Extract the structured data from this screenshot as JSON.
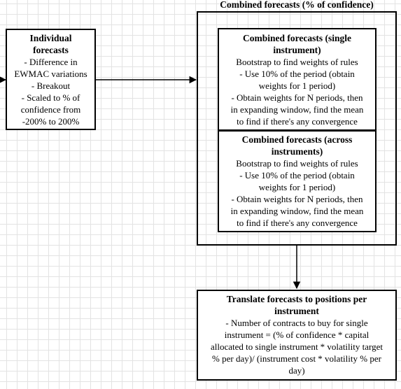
{
  "outer": {
    "title": "Combined forecasts (% of confidence)"
  },
  "individual": {
    "title": [
      "Individual",
      "forecasts"
    ],
    "lines": [
      "- Difference in",
      "EWMAC variations",
      "- Breakout",
      "- Scaled to % of",
      "confidence from",
      "-200% to 200%"
    ]
  },
  "single": {
    "title": [
      "Combined forecasts (single",
      "instrument)"
    ],
    "lines": [
      "Bootstrap to find weights of rules",
      "- Use 10% of the period (obtain",
      "weights for 1 period)",
      "- Obtain weights for N periods, then",
      "in expanding window, find the mean",
      "to find if there's any convergence"
    ]
  },
  "across": {
    "title": [
      "Combined forecasts (across",
      "instruments)"
    ],
    "lines": [
      "Bootstrap to find weights of rules",
      "- Use 10% of the period (obtain",
      "weights for 1 period)",
      "- Obtain weights for N periods, then",
      "in expanding window, find the mean",
      "to find if there's any convergence"
    ]
  },
  "translate": {
    "title": [
      "Translate forecasts to positions per",
      "instrument"
    ],
    "lines": [
      "- Number of contracts to buy for single",
      "instrument = (% of confidence * capital",
      "allocated to single instrument * volatility target",
      "% per day)/ (instrument cost * volatility % per",
      "day)"
    ]
  }
}
